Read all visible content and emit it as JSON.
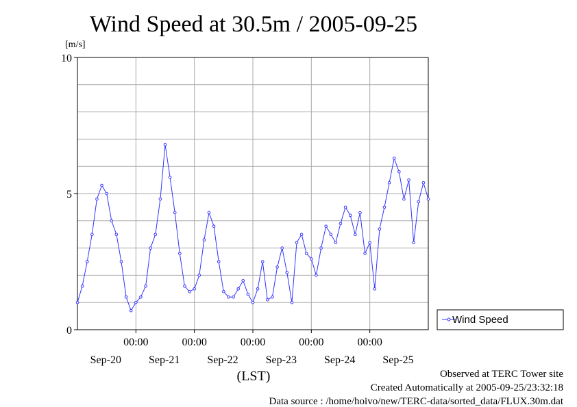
{
  "chart_data": {
    "type": "line",
    "title": "Wind Speed at 30.5m / 2005-09-25",
    "ylabel": "[m/s]",
    "xlabel": "(LST)",
    "ylim": [
      0,
      10
    ],
    "xlim_hours": [
      0,
      144
    ],
    "y_ticks": [
      {
        "value": 0,
        "label": "0"
      },
      {
        "value": 5,
        "label": "5"
      },
      {
        "value": 10,
        "label": "10"
      }
    ],
    "y_minor_grid": [
      1,
      2,
      3,
      4,
      6,
      7,
      8,
      9
    ],
    "x_ticks": [
      {
        "hour": 24,
        "time_label": "00:00",
        "date_label": "Sep-20"
      },
      {
        "hour": 48,
        "time_label": "00:00",
        "date_label": "Sep-21"
      },
      {
        "hour": 72,
        "time_label": "00:00",
        "date_label": "Sep-22"
      },
      {
        "hour": 96,
        "time_label": "00:00",
        "date_label": "Sep-23"
      },
      {
        "hour": 120,
        "time_label": "00:00",
        "date_label": "Sep-24"
      }
    ],
    "x_date_only_labels": [
      {
        "hour": 144,
        "date_label": "Sep-25"
      }
    ],
    "grid": true,
    "legend_position": "right",
    "series": [
      {
        "name": "Wind Speed",
        "color": "#3333ff",
        "x_hours": [
          0,
          2,
          4,
          6,
          8,
          10,
          12,
          14,
          16,
          18,
          20,
          22,
          24,
          26,
          28,
          30,
          32,
          34,
          36,
          38,
          40,
          42,
          44,
          46,
          48,
          50,
          52,
          54,
          56,
          58,
          60,
          62,
          64,
          66,
          68,
          70,
          72,
          74,
          76,
          78,
          80,
          82,
          84,
          86,
          88,
          90,
          92,
          94,
          96,
          98,
          100,
          102,
          104,
          106,
          108,
          110,
          112,
          114,
          116,
          118,
          120,
          122,
          124,
          126,
          128,
          130,
          132,
          134,
          136,
          138,
          140,
          142,
          144
        ],
        "values": [
          1.0,
          1.6,
          2.5,
          3.5,
          4.8,
          5.3,
          5.0,
          4.0,
          3.5,
          2.5,
          1.2,
          0.7,
          1.0,
          1.2,
          1.6,
          3.0,
          3.5,
          4.8,
          6.8,
          5.6,
          4.3,
          2.8,
          1.6,
          1.4,
          1.5,
          2.0,
          3.3,
          4.3,
          3.8,
          2.5,
          1.4,
          1.2,
          1.2,
          1.5,
          1.8,
          1.3,
          1.0,
          1.5,
          2.5,
          1.1,
          1.2,
          2.3,
          3.0,
          2.1,
          1.0,
          3.2,
          3.5,
          2.8,
          2.6,
          2.0,
          3.0,
          3.8,
          3.5,
          3.2,
          3.9,
          4.5,
          4.2,
          3.5,
          4.3,
          2.8,
          3.2,
          1.5,
          3.7,
          4.5,
          5.4,
          6.3,
          5.8,
          4.8,
          5.5,
          3.2,
          4.7,
          5.4,
          4.8
        ]
      }
    ]
  },
  "footer": {
    "line1": "Observed at TERC Tower site",
    "line2": "Created Automatically at 2005-09-25/23:32:18",
    "line3": "Data source : /home/hoivo/new/TERC-data/sorted_data/FLUX.30m.dat"
  }
}
